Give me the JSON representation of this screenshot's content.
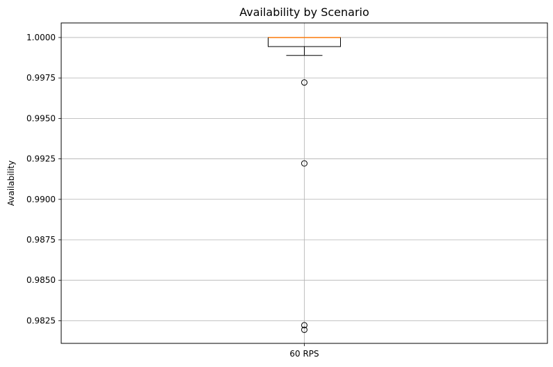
{
  "chart_data": {
    "type": "box",
    "title": "Availability by Scenario",
    "xlabel": "",
    "ylabel": "Availability",
    "categories": [
      "60 RPS"
    ],
    "ylim": [
      0.9811,
      1.0009
    ],
    "yticks": [
      0.9825,
      0.985,
      0.9875,
      0.99,
      0.9925,
      0.995,
      0.9975,
      1.0
    ],
    "ytick_labels": [
      "0.9825",
      "0.9850",
      "0.9875",
      "0.9900",
      "0.9925",
      "0.9950",
      "0.9975",
      "1.0000"
    ],
    "grid": true,
    "boxes": [
      {
        "category": "60 RPS",
        "whisker_low": 0.99889,
        "q1": 0.99944,
        "median": 1.0,
        "q3": 1.0,
        "whisker_high": 1.0,
        "outliers": [
          0.99722,
          0.99222,
          0.98222,
          0.98194
        ]
      }
    ],
    "colors": {
      "box": "#000000",
      "median": "#ff7f0e",
      "grid": "#b0b0b0",
      "outlier": "#000000"
    }
  }
}
